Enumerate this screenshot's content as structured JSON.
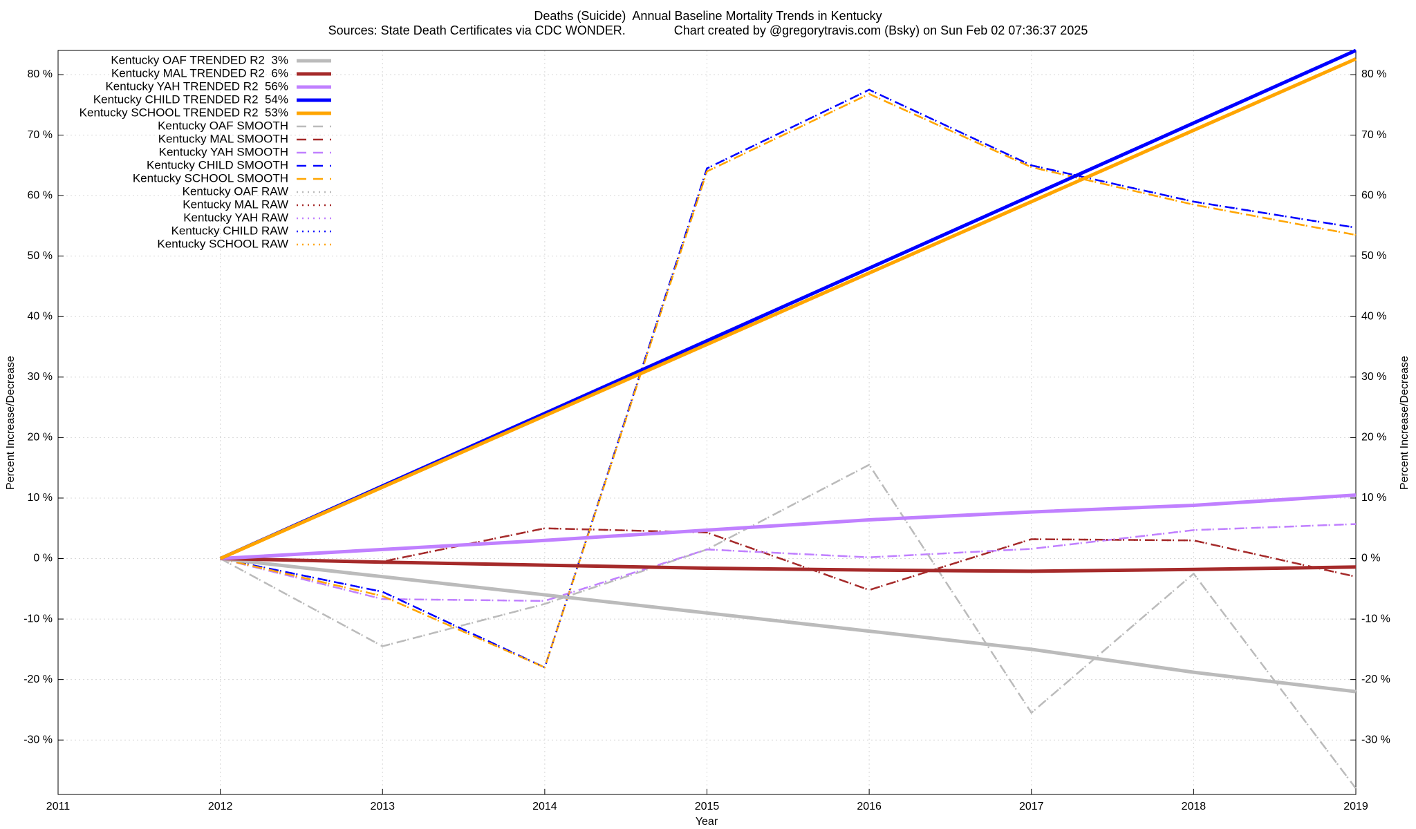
{
  "chart_data": {
    "type": "line",
    "title": "Deaths (Suicide)  Annual Baseline Mortality Trends in Kentucky",
    "subtitle": "Sources: State Death Certificates via CDC WONDER.              Chart created by @gregorytravis.com (Bsky) on Sun Feb 02 07:36:37 2025",
    "xlabel": "Year",
    "ylabel": "Percent Increase/Decrease",
    "x": [
      2012,
      2013,
      2014,
      2015,
      2016,
      2017,
      2018,
      2019
    ],
    "xlim": [
      2011,
      2019
    ],
    "xticks": [
      2011,
      2012,
      2013,
      2014,
      2015,
      2016,
      2017,
      2018,
      2019
    ],
    "ylim": [
      -39,
      84
    ],
    "yticks": [
      {
        "value": -30,
        "label": "-30 %"
      },
      {
        "value": -20,
        "label": "-20 %"
      },
      {
        "value": -10,
        "label": "-10 %"
      },
      {
        "value": 0,
        "label": "0 %"
      },
      {
        "value": 10,
        "label": "10 %"
      },
      {
        "value": 20,
        "label": "20 %"
      },
      {
        "value": 30,
        "label": "30 %"
      },
      {
        "value": 40,
        "label": "40 %"
      },
      {
        "value": 50,
        "label": "50 %"
      },
      {
        "value": 60,
        "label": "60 %"
      },
      {
        "value": 70,
        "label": "70 %"
      },
      {
        "value": 80,
        "label": "80 %"
      }
    ],
    "grid": true,
    "legend": "top-left",
    "series": [
      {
        "name": "Kentucky OAF TRENDED R2  3%",
        "color": "#bbbbbb",
        "style": "solid",
        "values": [
          0,
          -3,
          -6,
          -9,
          -12,
          -15,
          -18.8,
          -22
        ]
      },
      {
        "name": "Kentucky MAL TRENDED R2  6%",
        "color": "#a52a2a",
        "style": "solid",
        "values": [
          0,
          -0.6,
          -1.1,
          -1.6,
          -1.9,
          -2.1,
          -1.8,
          -1.4
        ]
      },
      {
        "name": "Kentucky YAH TRENDED R2  56%",
        "color": "#c080ff",
        "style": "solid",
        "values": [
          0,
          1.5,
          3,
          4.7,
          6.4,
          7.7,
          8.8,
          10.5
        ]
      },
      {
        "name": "Kentucky CHILD TRENDED R2  54%",
        "color": "#0000ff",
        "style": "solid",
        "values": [
          0,
          12,
          24,
          36,
          48,
          60,
          72,
          84
        ]
      },
      {
        "name": "Kentucky SCHOOL TRENDED R2  53%",
        "color": "#ffa500",
        "style": "solid",
        "values": [
          0,
          11.8,
          23.6,
          35.4,
          47.2,
          59,
          70.8,
          82.6
        ]
      },
      {
        "name": "Kentucky OAF SMOOTH",
        "color": "#bbbbbb",
        "style": "dashed",
        "values": [
          0,
          -14.5,
          -7.5,
          1.5,
          15.5,
          -25.5,
          -2.5,
          -38
        ]
      },
      {
        "name": "Kentucky MAL SMOOTH",
        "color": "#a52a2a",
        "style": "dashed",
        "values": [
          0,
          -0.5,
          5,
          4.3,
          -5.2,
          3.2,
          3,
          -3
        ]
      },
      {
        "name": "Kentucky YAH SMOOTH",
        "color": "#c080ff",
        "style": "dashed",
        "values": [
          0,
          -6.7,
          -7,
          1.5,
          0.2,
          1.6,
          4.7,
          5.7
        ]
      },
      {
        "name": "Kentucky CHILD SMOOTH",
        "color": "#0000ff",
        "style": "dashed",
        "values": [
          0,
          -5.5,
          -18,
          64.5,
          77.5,
          65,
          59,
          54.7
        ]
      },
      {
        "name": "Kentucky SCHOOL SMOOTH",
        "color": "#ffa500",
        "style": "dashed",
        "values": [
          0,
          -6.2,
          -18,
          64,
          76.8,
          64.7,
          58.5,
          53.5
        ]
      },
      {
        "name": "Kentucky OAF RAW",
        "color": "#bbbbbb",
        "style": "dotted",
        "values": [
          0,
          -14.5,
          -7.5,
          1.5,
          15.5,
          -25.5,
          -2.5,
          -38
        ]
      },
      {
        "name": "Kentucky MAL RAW",
        "color": "#a52a2a",
        "style": "dotted",
        "values": [
          0,
          -0.5,
          5,
          4.3,
          -5.2,
          3.2,
          3,
          -3
        ]
      },
      {
        "name": "Kentucky YAH RAW",
        "color": "#c080ff",
        "style": "dotted",
        "values": [
          0,
          -6.7,
          -7,
          1.5,
          0.2,
          1.6,
          4.7,
          5.7
        ]
      },
      {
        "name": "Kentucky CHILD RAW",
        "color": "#0000ff",
        "style": "dotted",
        "values": [
          0,
          -5.5,
          -18,
          64.5,
          77.5,
          65,
          59,
          54.7
        ]
      },
      {
        "name": "Kentucky SCHOOL RAW",
        "color": "#ffa500",
        "style": "dotted",
        "values": [
          0,
          -6.2,
          -18,
          64,
          76.8,
          64.7,
          58.5,
          53.5
        ]
      }
    ]
  }
}
